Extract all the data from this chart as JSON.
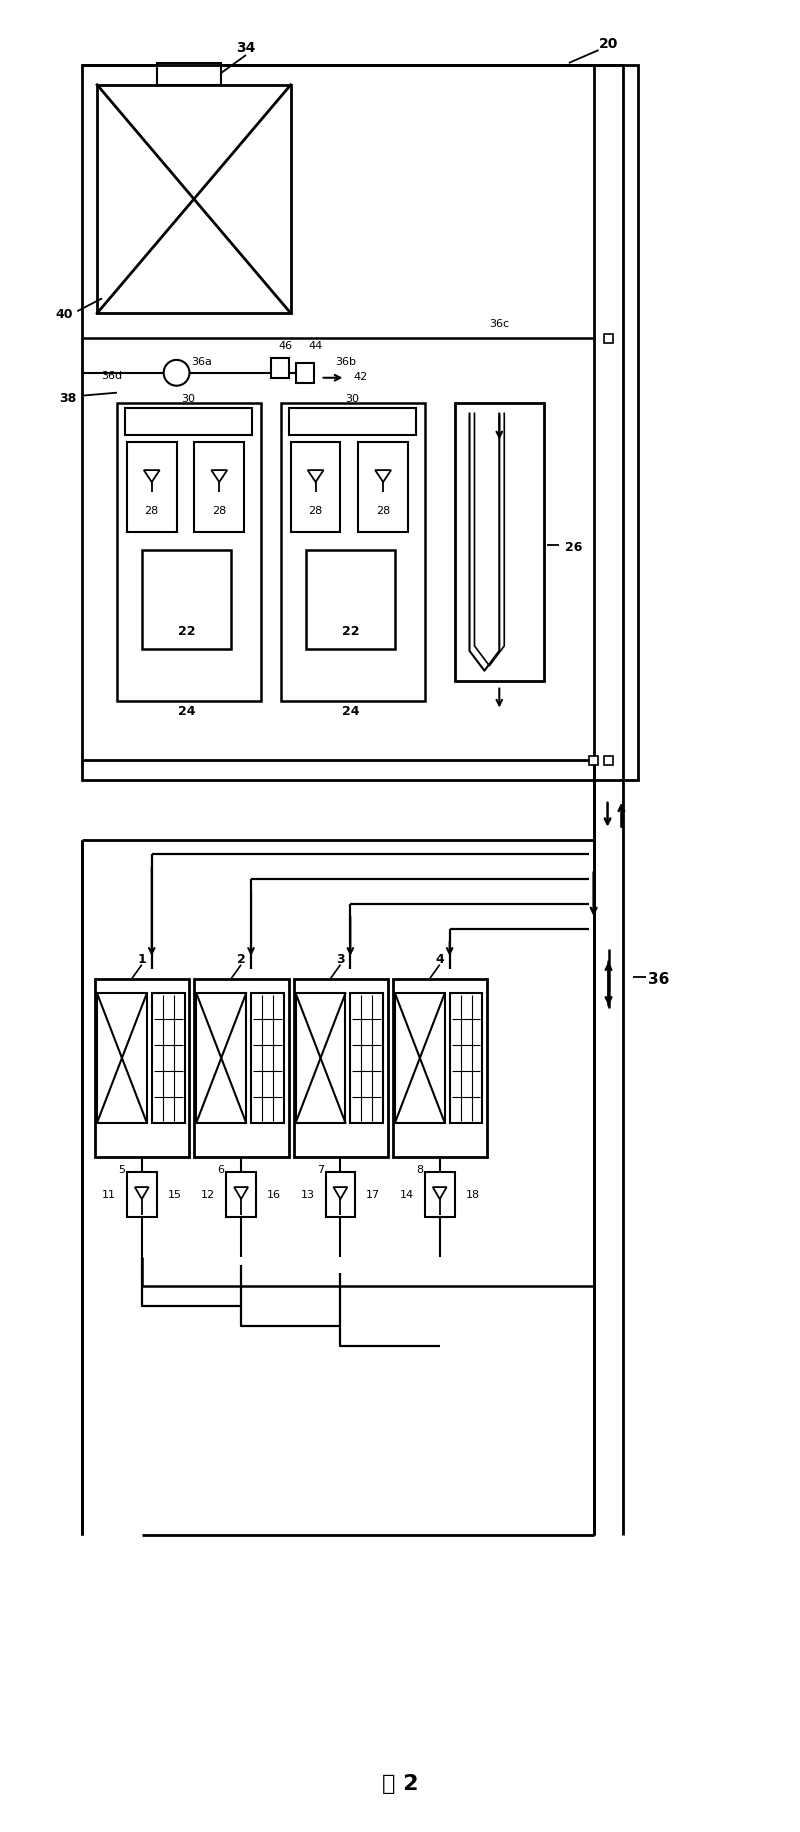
{
  "title": "图 2",
  "bg_color": "#ffffff",
  "line_color": "#000000",
  "fig_width": 8.0,
  "fig_height": 18.33,
  "labels": {
    "20": "20",
    "34": "34",
    "36": "36",
    "36a": "36a",
    "36b": "36b",
    "36c": "36c",
    "36d": "36d",
    "38": "38",
    "40": "40",
    "42": "42",
    "44": "44",
    "46": "46",
    "26": "26",
    "28": "28",
    "22": "22",
    "24": "24",
    "30": "30",
    "1": "1",
    "2": "2",
    "3": "3",
    "4": "4",
    "5": "5",
    "6": "6",
    "7": "7",
    "8": "8",
    "11": "11",
    "12": "12",
    "13": "13",
    "14": "14",
    "15": "15",
    "16": "16",
    "17": "17",
    "18": "18"
  }
}
